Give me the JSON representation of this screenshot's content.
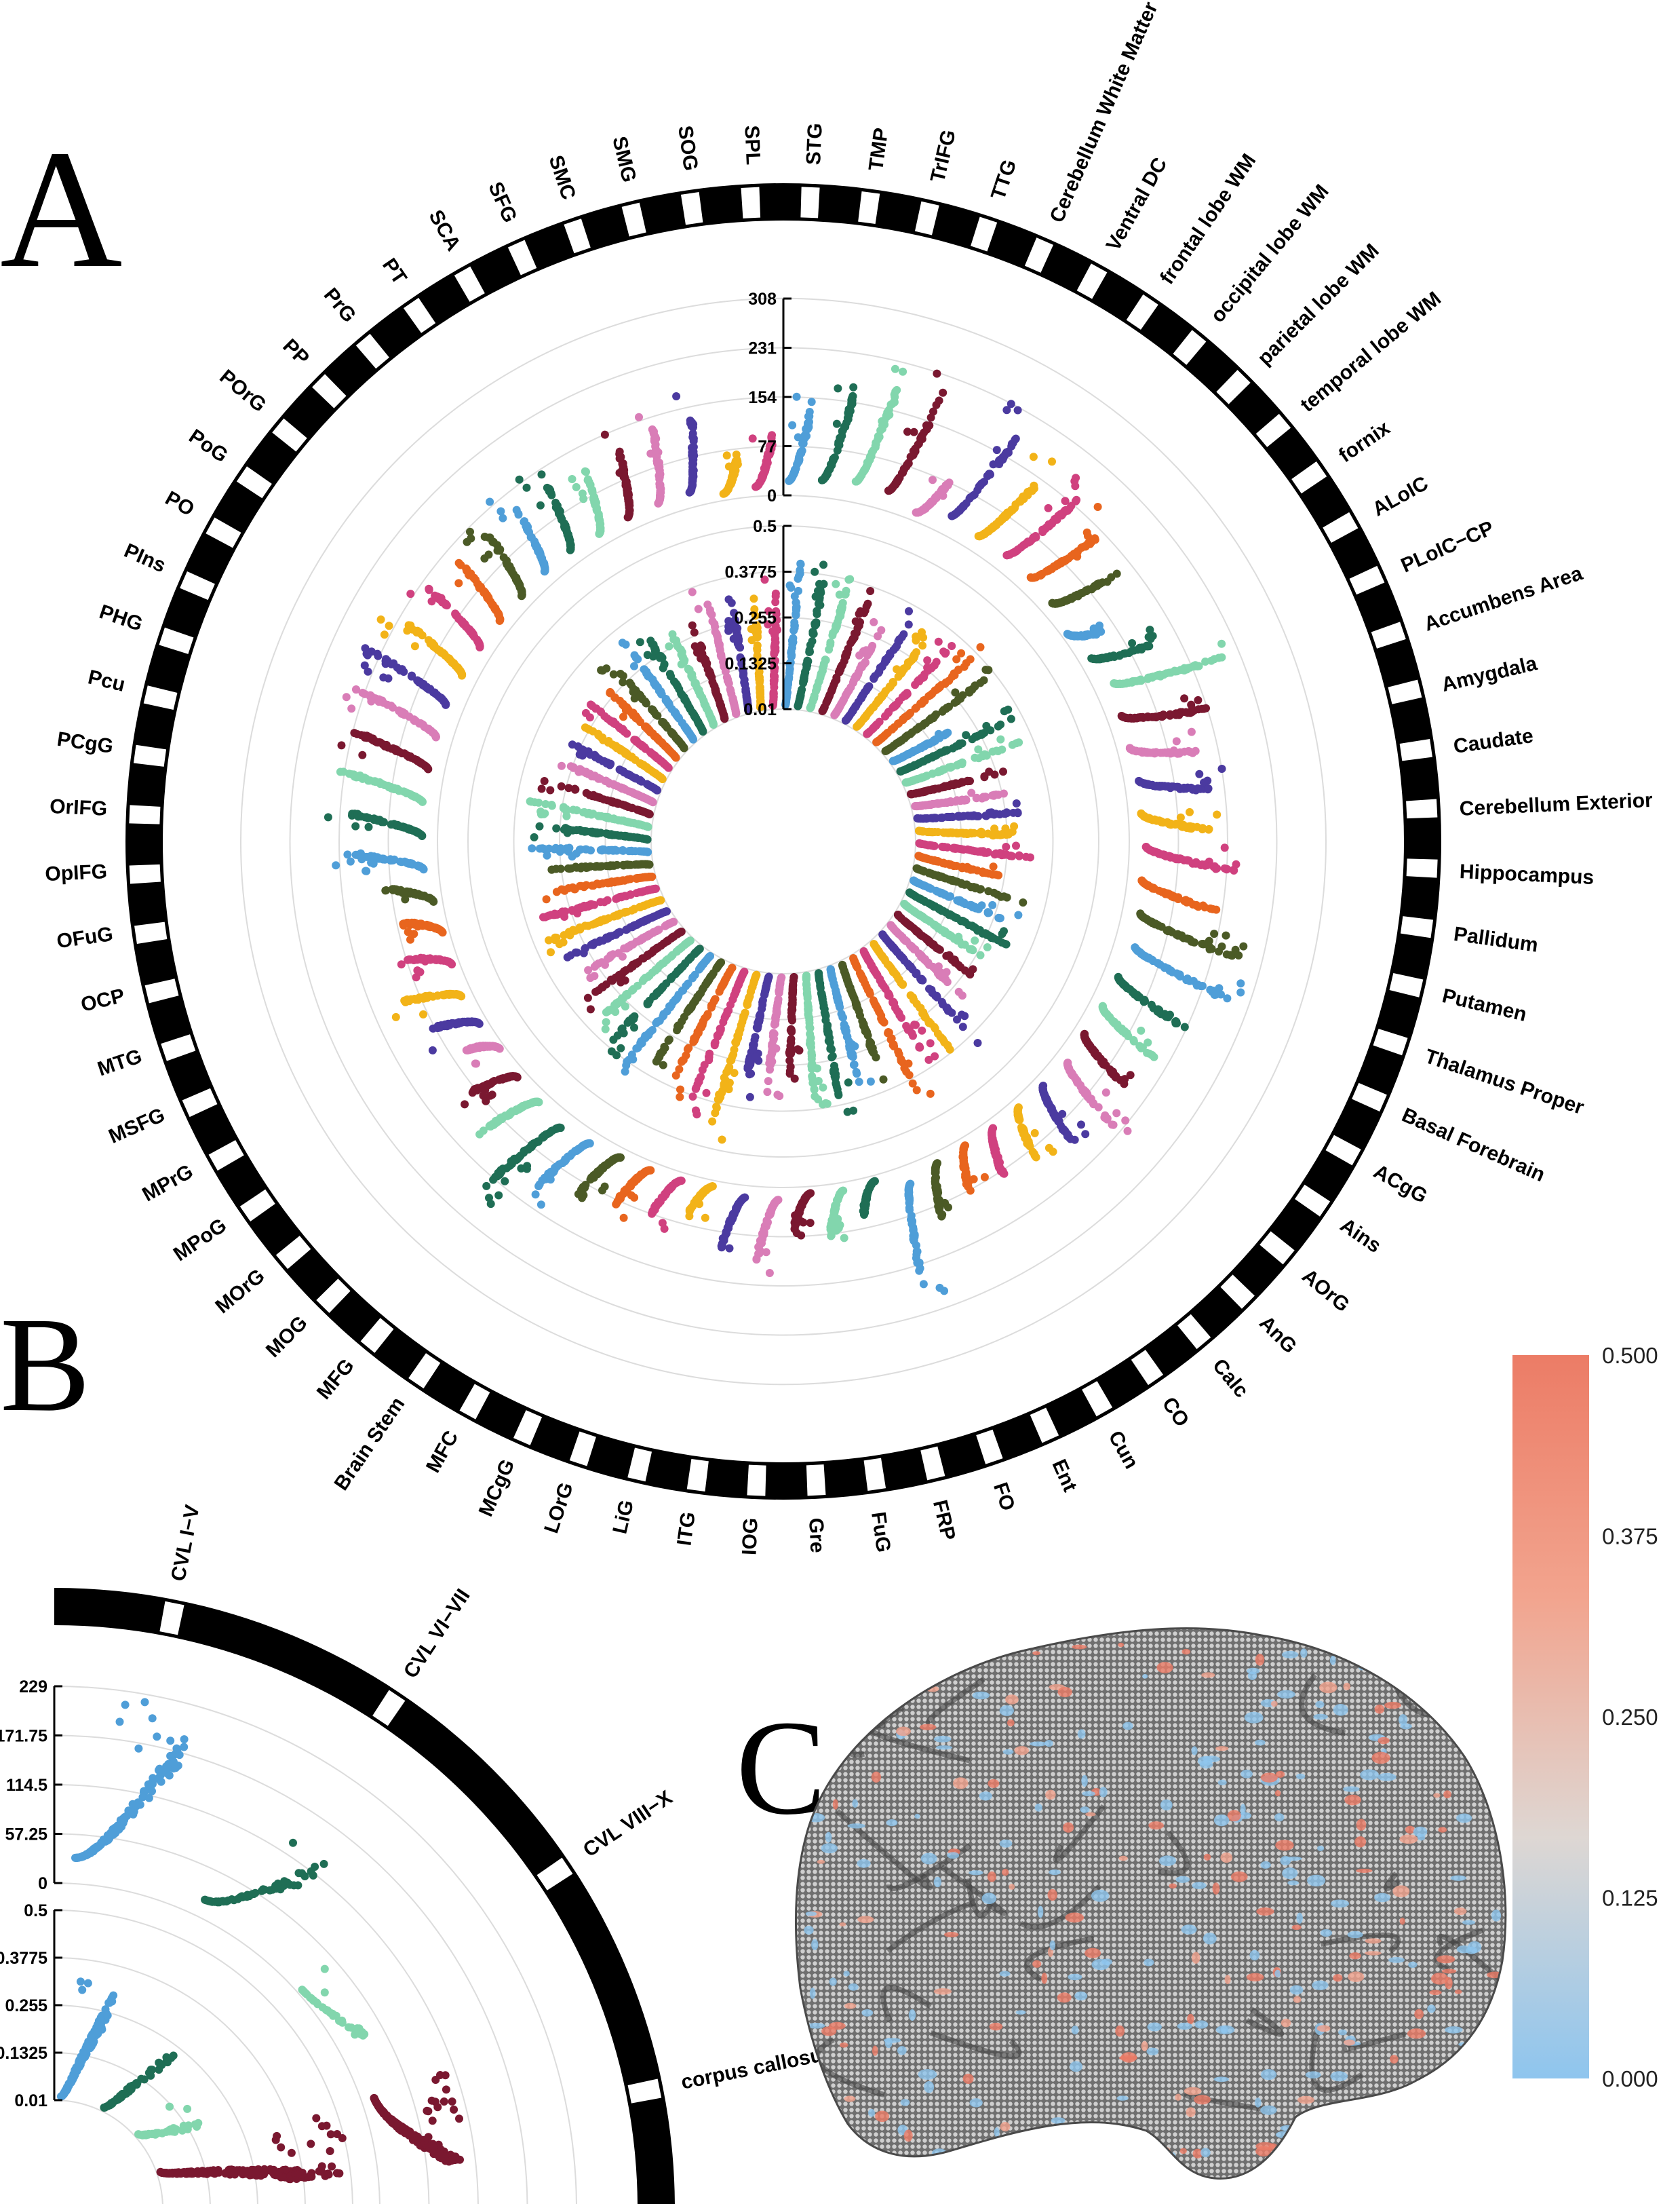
{
  "panels": {
    "a": "A",
    "b": "B",
    "c": "C"
  },
  "palette": [
    "#4b3aa0",
    "#f2b318",
    "#d0417f",
    "#e8651e",
    "#4b5a26",
    "#4f9ed8",
    "#1f6e55",
    "#82d6ad",
    "#7a1830",
    "#d97db7"
  ],
  "chart_data": [
    {
      "id": "panel-A",
      "type": "scatter",
      "layout": "circular",
      "regions": [
        "STG",
        "TMP",
        "TrIFG",
        "TTG",
        "Cerebellum White Matter",
        "Ventral DC",
        "frontal lobe WM",
        "occipital lobe WM",
        "parietal lobe WM",
        "temporal lobe WM",
        "fornix",
        "ALoIC",
        "PLoIC−CP",
        "Accumbens Area",
        "Amygdala",
        "Caudate",
        "Cerebellum Exterior",
        "Hippocampus",
        "Pallidum",
        "Putamen",
        "Thalamus Proper",
        "Basal Forebrain",
        "ACgG",
        "Ains",
        "AOrG",
        "AnG",
        "Calc",
        "CO",
        "Cun",
        "Ent",
        "FO",
        "FRP",
        "FuG",
        "Gre",
        "IOG",
        "ITG",
        "LiG",
        "LOrG",
        "MCgG",
        "MFC",
        "Brain Stem",
        "MFG",
        "MOG",
        "MOrG",
        "MPoG",
        "MPrG",
        "MSFG",
        "MTG",
        "OCP",
        "OFuG",
        "OpIFG",
        "OrIFG",
        "PCgG",
        "Pcu",
        "PHG",
        "PIns",
        "PO",
        "PoG",
        "POrG",
        "PP",
        "PrG",
        "PT",
        "SCA",
        "SFG",
        "SMC",
        "SMG",
        "SOG",
        "SPL"
      ],
      "outer_track": {
        "ticks": [
          "0",
          "77",
          "154",
          "231",
          "308"
        ],
        "ylim": [
          0,
          308
        ]
      },
      "inner_track": {
        "ticks": [
          "0.01",
          "0.1325",
          "0.255",
          "0.3775",
          "0.5"
        ],
        "ylim": [
          0.01,
          0.5
        ]
      },
      "outer_peak": [
        150,
        180,
        220,
        210,
        90,
        210,
        170,
        175,
        165,
        140,
        60,
        120,
        210,
        155,
        135,
        150,
        135,
        175,
        150,
        190,
        220,
        160,
        140,
        120,
        150,
        110,
        95,
        95,
        85,
        110,
        200,
        60,
        85,
        70,
        130,
        125,
        60,
        85,
        90,
        100,
        130,
        175,
        120,
        100,
        55,
        90,
        120,
        80,
        70,
        95,
        155,
        160,
        175,
        170,
        175,
        190,
        165,
        150,
        140,
        135,
        150,
        155,
        130,
        140,
        150,
        160,
        70,
        100
      ],
      "inner_peak": [
        0.45,
        0.42,
        0.4,
        0.38,
        0.3,
        0.36,
        0.34,
        0.35,
        0.42,
        0.38,
        0.2,
        0.36,
        0.35,
        0.3,
        0.28,
        0.32,
        0.3,
        0.35,
        0.25,
        0.33,
        0.32,
        0.34,
        0.3,
        0.28,
        0.3,
        0.42,
        0.4,
        0.36,
        0.45,
        0.38,
        0.35,
        0.4,
        0.38,
        0.3,
        0.34,
        0.36,
        0.48,
        0.44,
        0.4,
        0.38,
        0.42,
        0.4,
        0.36,
        0.35,
        0.3,
        0.34,
        0.36,
        0.38,
        0.32,
        0.3,
        0.34,
        0.36,
        0.35,
        0.33,
        0.32,
        0.34,
        0.3,
        0.32,
        0.3,
        0.33,
        0.34,
        0.36,
        0.32,
        0.3,
        0.38,
        0.33,
        0.32,
        0.36
      ]
    },
    {
      "id": "panel-B",
      "type": "scatter",
      "layout": "circular-quarter",
      "regions": [
        "CVL I−V",
        "CVL VI−VII",
        "CVL VIII−X",
        "corpus callosum"
      ],
      "outer_track": {
        "ticks": [
          "0",
          "57.25",
          "114.5",
          "171.75",
          "229"
        ],
        "ylim": [
          0,
          229
        ]
      },
      "inner_track": {
        "ticks": [
          "0.01",
          "0.1325",
          "0.255",
          "0.3775",
          "0.5"
        ],
        "ylim": [
          0.01,
          0.5
        ]
      },
      "outer_peak": [
        200,
        140,
        40,
        100
      ],
      "inner_peak": [
        0.32,
        0.28,
        0.2,
        0.5
      ]
    },
    {
      "id": "panel-C",
      "type": "heatmap",
      "colorbar_ticks": [
        "0.000",
        "0.125",
        "0.250",
        "0.375",
        "0.500"
      ],
      "colorbar_range": [
        0,
        0.5
      ],
      "colorbar_colors": [
        "#8ec5ee",
        "#ded7d3",
        "#f2a48e",
        "#ec7c66"
      ]
    }
  ]
}
